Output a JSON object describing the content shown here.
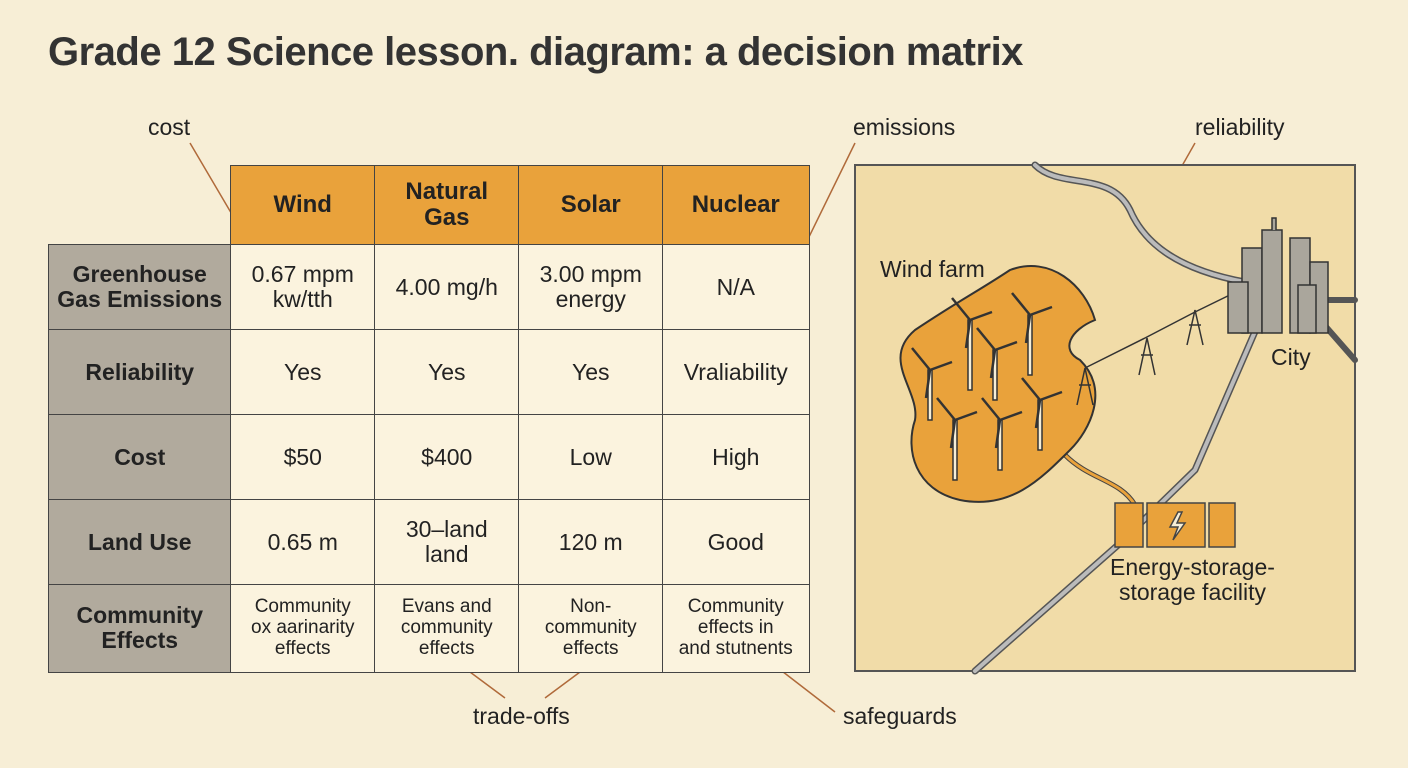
{
  "title": "Grade 12 Science lesson. diagram: a decision matrix",
  "callouts": {
    "cost": "cost",
    "emissions": "emissions",
    "reliability": "reliability",
    "trade_offs": "trade-offs",
    "safeguards": "safeguards"
  },
  "table": {
    "headers": [
      "Wind",
      "Natural\nGas",
      "Solar",
      "Nuclear"
    ],
    "rows": [
      {
        "label": "Greenhouse\nGas Emissions",
        "cells": [
          "0.67 mpm\nkw/tth",
          "4.00 mg/h",
          "3.00 mpm\nenergy",
          "N/A"
        ]
      },
      {
        "label": "Reliability",
        "cells": [
          "Yes",
          "Yes",
          "Yes",
          "Vraliability"
        ]
      },
      {
        "label": "Cost",
        "cells": [
          "$50",
          "$400",
          "Low",
          "High"
        ]
      },
      {
        "label": "Land Use",
        "cells": [
          "0.65 m",
          "30–land\nland",
          "120 m",
          "Good"
        ]
      },
      {
        "label": "Community\nEffects",
        "cells": [
          "Community\nox aarinarity\neffects",
          "Evans and\ncommunity\neffects",
          "Non-\ncommunity\neffects",
          "Community\neffects in\nand stutnents"
        ]
      }
    ]
  },
  "map": {
    "wind_farm": "Wind farm",
    "city": "City",
    "storage": "Energy-storage-\nstorage facility"
  }
}
